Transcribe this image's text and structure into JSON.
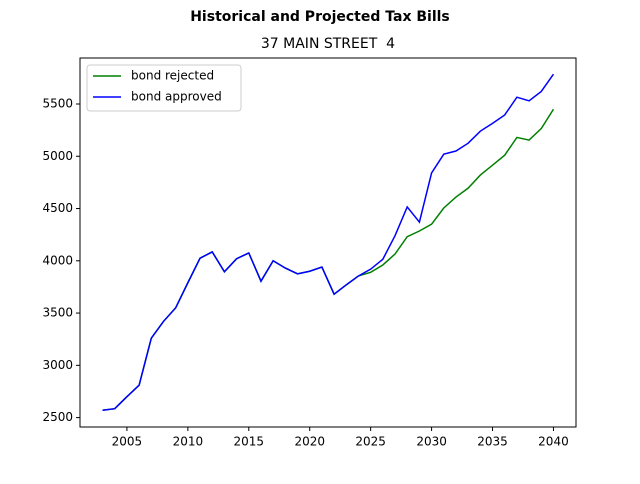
{
  "chart_data": {
    "type": "line",
    "title": "Historical and Projected Tax Bills",
    "subtitle": "37 MAIN STREET  4",
    "x": [
      2003,
      2004,
      2005,
      2006,
      2007,
      2008,
      2009,
      2010,
      2011,
      2012,
      2013,
      2014,
      2015,
      2016,
      2017,
      2018,
      2019,
      2020,
      2021,
      2022,
      2023,
      2024,
      2025,
      2026,
      2027,
      2028,
      2029,
      2030,
      2031,
      2032,
      2033,
      2034,
      2035,
      2036,
      2037,
      2038,
      2039,
      2040
    ],
    "series": [
      {
        "name": "bond rejected",
        "color": "#008000",
        "values": [
          2570,
          2585,
          2700,
          2810,
          3260,
          3420,
          3550,
          3790,
          4025,
          4085,
          3895,
          4020,
          4075,
          3805,
          4000,
          3930,
          3875,
          3900,
          3940,
          3680,
          3770,
          3855,
          3890,
          3960,
          4065,
          4230,
          4285,
          4350,
          4505,
          4610,
          4695,
          4820,
          4915,
          5010,
          5180,
          5155,
          5265,
          5450
        ]
      },
      {
        "name": "bond approved",
        "color": "#0000ff",
        "values": [
          2570,
          2585,
          2700,
          2810,
          3260,
          3420,
          3550,
          3790,
          4025,
          4085,
          3895,
          4020,
          4075,
          3805,
          4000,
          3930,
          3875,
          3900,
          3940,
          3680,
          3770,
          3855,
          3920,
          4015,
          4240,
          4515,
          4370,
          4840,
          5020,
          5050,
          5125,
          5240,
          5315,
          5395,
          5565,
          5530,
          5620,
          5785
        ]
      }
    ],
    "xlim": [
      2001.15,
      2041.85
    ],
    "xticks": [
      2005,
      2010,
      2015,
      2020,
      2025,
      2030,
      2035,
      2040
    ],
    "ylim": [
      2410,
      5940
    ],
    "yticks": [
      2500,
      3000,
      3500,
      4000,
      4500,
      5000,
      5500
    ],
    "legend": "upper left"
  }
}
